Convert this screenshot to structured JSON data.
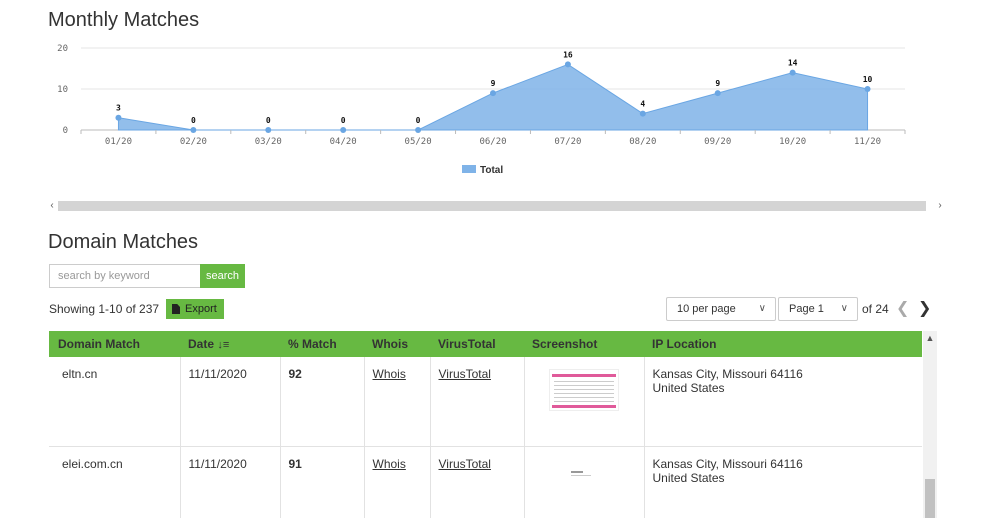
{
  "chart_title": "Monthly Matches",
  "domain_title": "Domain Matches",
  "chart_data": {
    "type": "area",
    "categories": [
      "01/20",
      "02/20",
      "03/20",
      "04/20",
      "05/20",
      "06/20",
      "07/20",
      "08/20",
      "09/20",
      "10/20",
      "11/20"
    ],
    "series": [
      {
        "name": "Total",
        "values": [
          3,
          0,
          0,
          0,
          0,
          9,
          16,
          4,
          9,
          14,
          10
        ]
      }
    ],
    "ylim": [
      0,
      20
    ],
    "yticks": [
      0,
      10,
      20
    ],
    "legend": "bottom-center",
    "color": "#7fb3e8"
  },
  "search": {
    "placeholder": "search by keyword",
    "button": "search"
  },
  "showing": "Showing 1-10 of 237",
  "export_label": "Export",
  "pagination": {
    "per_page": "10 per page",
    "page": "Page 1",
    "of": "of 24"
  },
  "table": {
    "headers": [
      "Domain Match",
      "Date",
      "% Match",
      "Whois",
      "VirusTotal",
      "Screenshot",
      "IP Location"
    ],
    "rows": [
      {
        "domain": "eltn.cn",
        "date": "11/11/2020",
        "match": "92",
        "whois": "Whois",
        "virustotal": "VirusTotal",
        "loc1": "Kansas City, Missouri 64116",
        "loc2": "United States"
      },
      {
        "domain": "elei.com.cn",
        "date": "11/11/2020",
        "match": "91",
        "whois": "Whois",
        "virustotal": "VirusTotal",
        "loc1": "Kansas City, Missouri 64116",
        "loc2": "United States"
      }
    ]
  },
  "icons": {
    "sort": "sort-desc-icon",
    "export": "file-icon"
  },
  "colors": {
    "accent": "#67b942",
    "area": "#7fb3e8"
  }
}
